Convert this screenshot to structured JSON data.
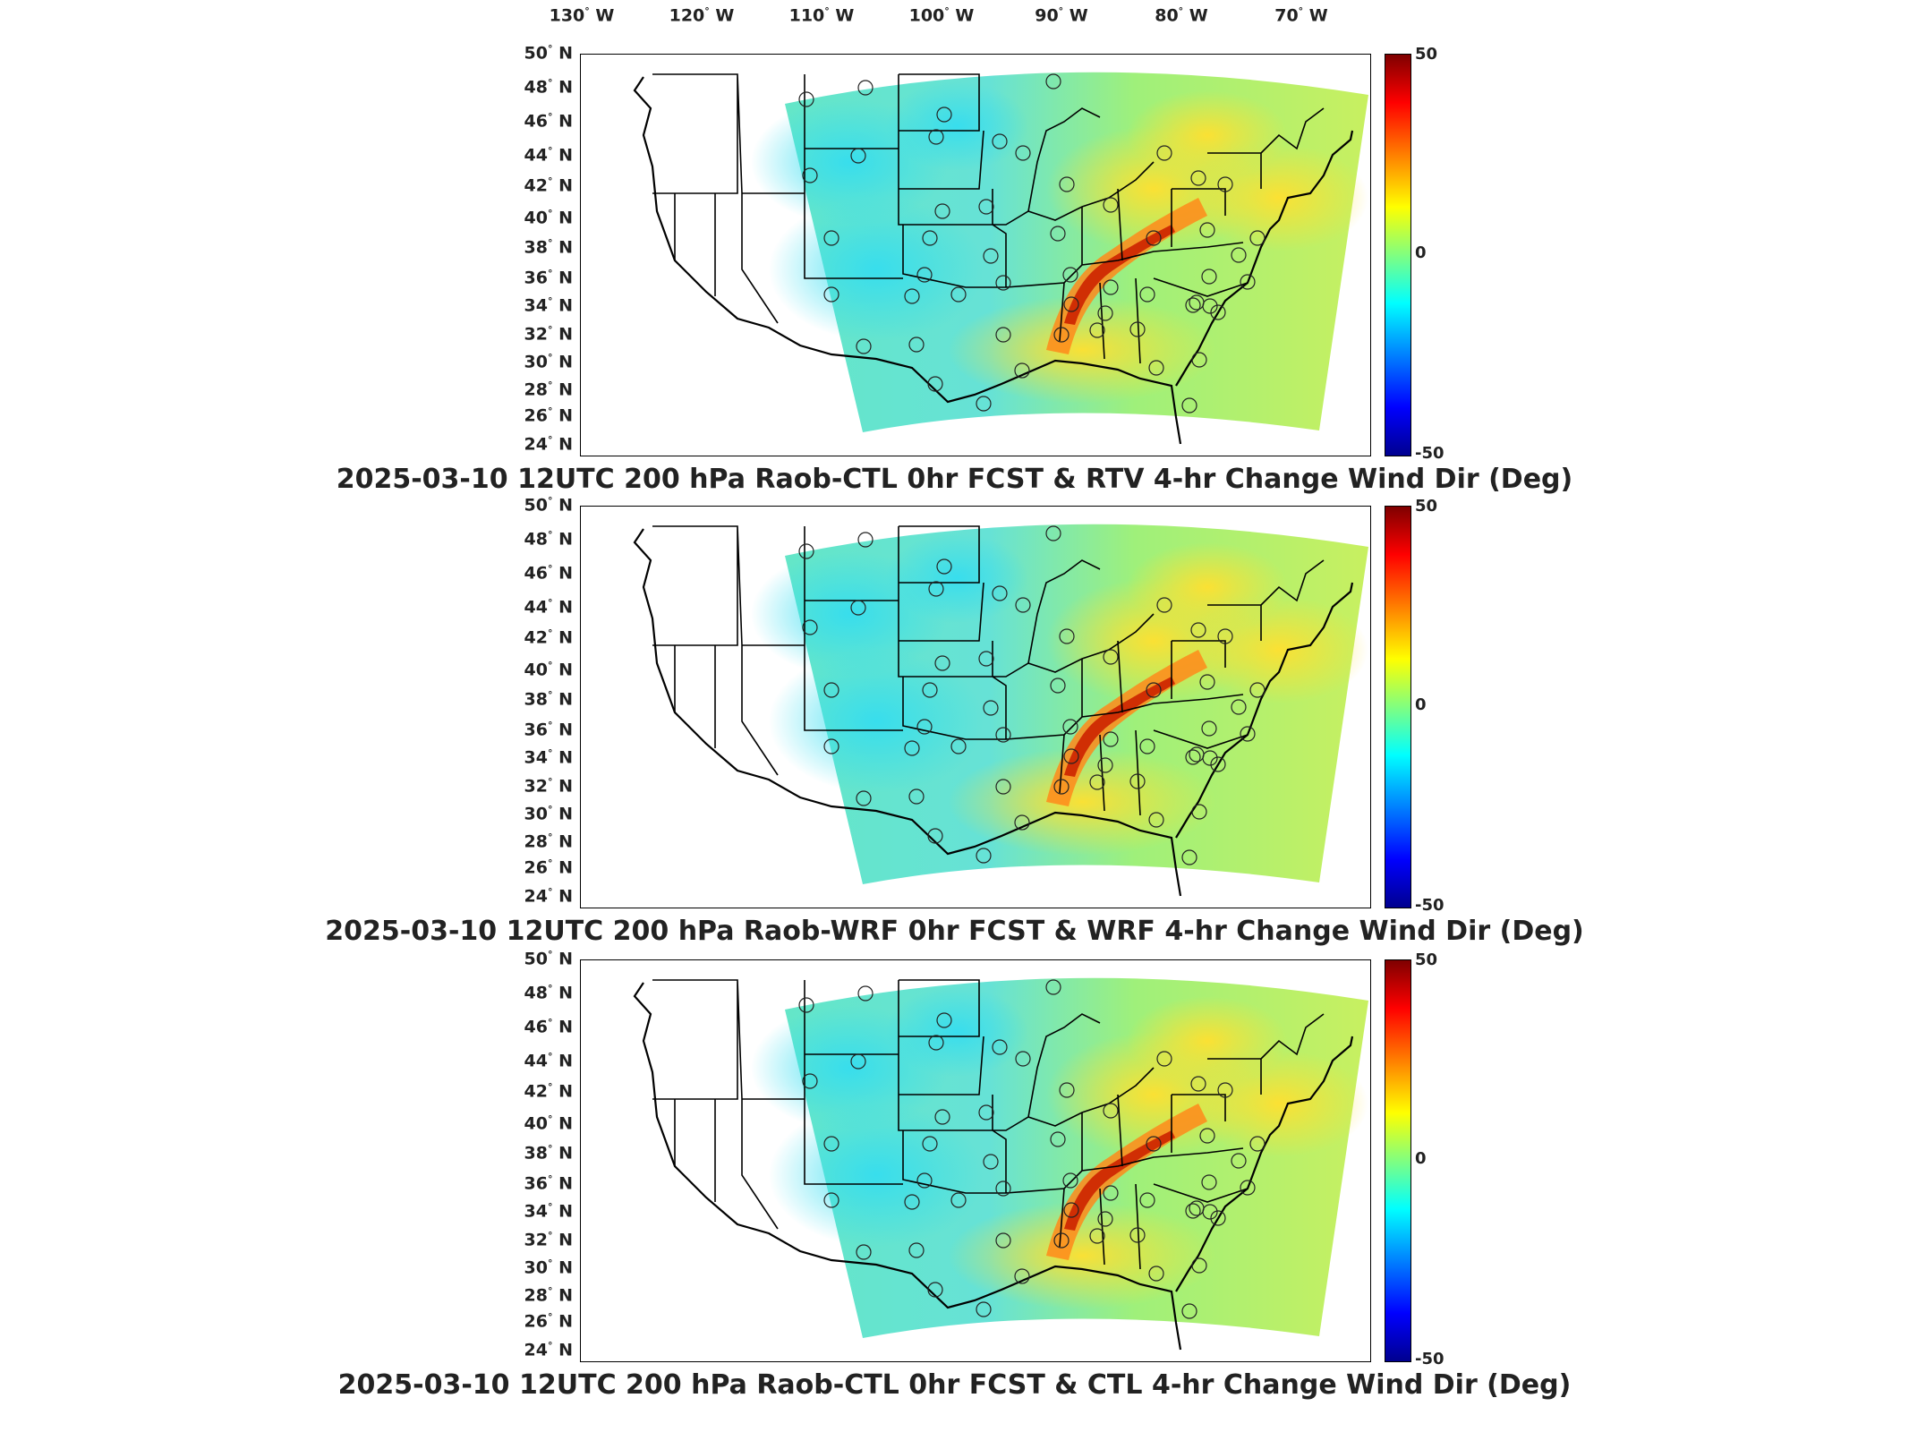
{
  "longitude_labels": [
    "130",
    "120",
    "110",
    "100",
    "90",
    "80",
    "70"
  ],
  "longitude_suffix": "W",
  "latitude_labels": [
    "50",
    "48",
    "46",
    "44",
    "42",
    "40",
    "38",
    "36",
    "34",
    "32",
    "30",
    "28",
    "26",
    "24"
  ],
  "latitude_suffix": "N",
  "degree_symbol": "°",
  "colorbar": {
    "max": "50",
    "mid": "0",
    "min": "-50"
  },
  "panels": [
    {
      "title": "2025-03-10 12UTC 200 hPa Raob-CTL 0hr FCST & RTV 4-hr Change Wind Dir (Deg)"
    },
    {
      "title": "2025-03-10 12UTC 200 hPa Raob-WRF 0hr FCST & WRF 4-hr Change Wind Dir (Deg)"
    },
    {
      "title": "2025-03-10 12UTC 200 hPa Raob-CTL 0hr FCST & CTL 4-hr Change Wind Dir (Deg)"
    }
  ],
  "colors": {
    "hot": "#cc2200",
    "warm": "#ffdd33",
    "neutral": "#8fe88f",
    "cool": "#55e0e0"
  }
}
